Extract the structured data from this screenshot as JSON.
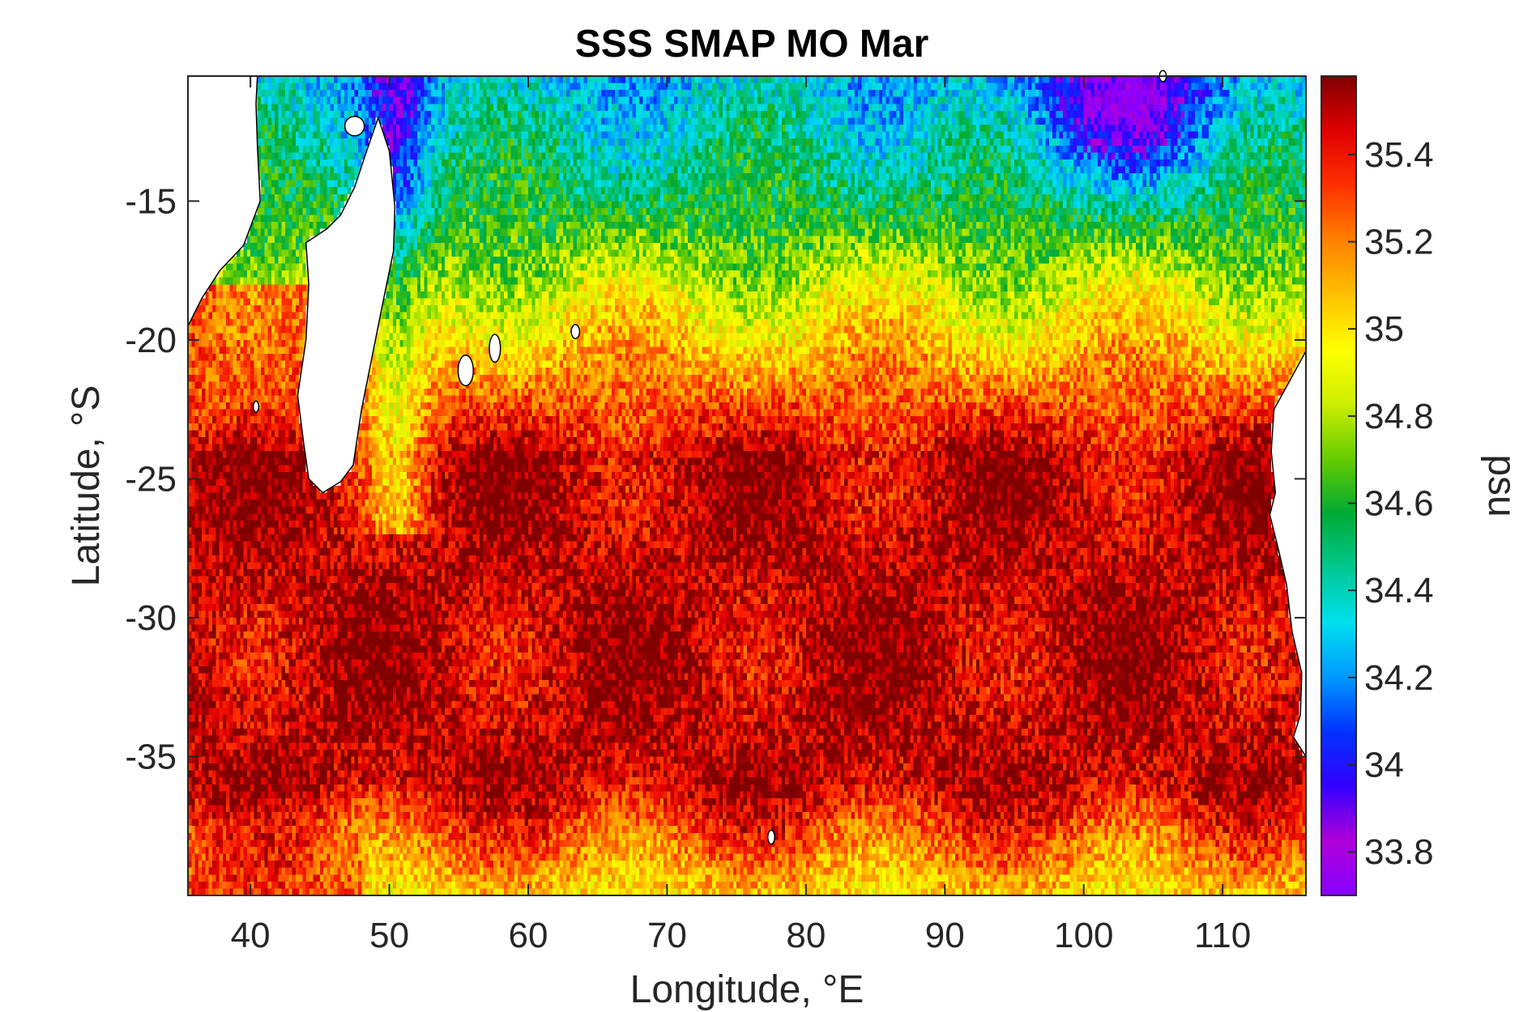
{
  "chart_data": {
    "type": "heatmap",
    "title": "SSS SMAP MO Mar",
    "xlabel": "Longitude, °E",
    "ylabel": "Latitude, °S",
    "xlim": [
      35.5,
      116
    ],
    "ylim": [
      -40,
      -10.5
    ],
    "x_ticks": [
      40,
      50,
      60,
      70,
      80,
      90,
      100,
      110
    ],
    "x_tick_labels": [
      "40",
      "50",
      "60",
      "70",
      "80",
      "90",
      "100",
      "110"
    ],
    "y_ticks": [
      -15,
      -20,
      -25,
      -30,
      -35
    ],
    "y_tick_labels": [
      "-15",
      "-20",
      "-25",
      "-30",
      "-35"
    ],
    "colorbar": {
      "label": "psu",
      "clim": [
        33.7,
        35.58
      ],
      "ticks": [
        35.4,
        35.2,
        35,
        34.8,
        34.6,
        34.4,
        34.2,
        34,
        33.8
      ],
      "tick_labels": [
        "35.4",
        "35.2",
        "35",
        "34.8",
        "34.6",
        "34.4",
        "34.2",
        "34",
        "33.8"
      ],
      "colormap": [
        "#8800ff",
        "#b000d8",
        "#3300ff",
        "#0033ff",
        "#0099ff",
        "#00e0ee",
        "#00c890",
        "#00aa33",
        "#66cc00",
        "#ccee00",
        "#ffff00",
        "#ffc000",
        "#ff8000",
        "#ff3000",
        "#e00000",
        "#800000"
      ]
    },
    "features": {
      "land_regions": [
        "Africa (east coast)",
        "Madagascar",
        "Australia (west coast)"
      ],
      "fresh_pool_nw": "low salinity (~34.0-34.3 psu) in north-east near 95-108°E, 11-15°S",
      "salty_band": "maximum salinity (>35.5 psu) between ~25°S and ~36°S, 55-110°E",
      "southern_edge": "fresher (~34.9-35.1 psu) south of ~37°S"
    },
    "colors": {
      "land": "#ffffff",
      "coastline": "#000000",
      "axes": "#262626"
    }
  }
}
